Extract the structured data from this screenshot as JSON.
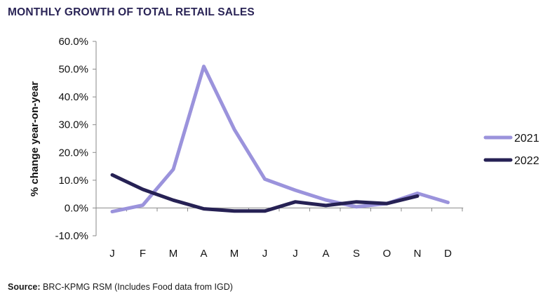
{
  "title": "MONTHLY GROWTH OF TOTAL RETAIL SALES",
  "source_label": "Source:",
  "source_text": " BRC-KPMG RSM (Includes Food data from IGD)",
  "chart_data": {
    "type": "line",
    "title": "MONTHLY GROWTH OF TOTAL RETAIL SALES",
    "xlabel": "",
    "ylabel": "% change year-on-year",
    "categories": [
      "J",
      "F",
      "M",
      "A",
      "M",
      "J",
      "J",
      "A",
      "S",
      "O",
      "N",
      "D"
    ],
    "ylim": [
      -10,
      60
    ],
    "yticks": [
      -10,
      0,
      10,
      20,
      30,
      40,
      50,
      60
    ],
    "ytick_labels": [
      "-10.0%",
      "0.0%",
      "10.0%",
      "20.0%",
      "30.0%",
      "40.0%",
      "50.0%",
      "60.0%"
    ],
    "grid": false,
    "legend_position": "right",
    "series": [
      {
        "name": "2021",
        "color": "#9b93dc",
        "values": [
          -1.3,
          1.0,
          13.9,
          51.0,
          28.3,
          10.4,
          6.4,
          2.9,
          0.4,
          1.6,
          5.3,
          2.0
        ]
      },
      {
        "name": "2022",
        "color": "#262154",
        "values": [
          11.9,
          6.7,
          2.8,
          -0.3,
          -1.1,
          -1.1,
          2.2,
          0.9,
          2.2,
          1.6,
          4.3,
          null
        ]
      }
    ]
  }
}
